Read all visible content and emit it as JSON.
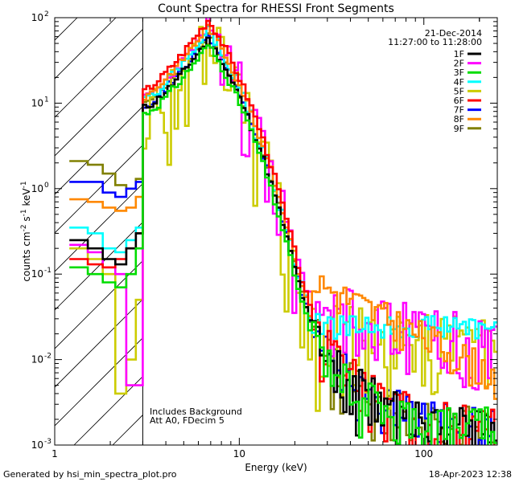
{
  "chart_data": {
    "type": "line",
    "title": "Count Spectra for RHESSI Front Segments",
    "xlabel": "Energy (keV)",
    "ylabel_main": "counts cm",
    "ylabel_sup1": "-2",
    "ylabel_mid": " s",
    "ylabel_sup2": "-1",
    "ylabel_end": " keV",
    "ylabel_sup3": "-1",
    "x_scale": "log",
    "y_scale": "log",
    "xlim": [
      1,
      250
    ],
    "ylim": [
      0.001,
      100
    ],
    "x_tick_labels": [
      {
        "v": 1,
        "t": "1"
      },
      {
        "v": 10,
        "t": "10"
      },
      {
        "v": 100,
        "t": "100"
      }
    ],
    "y_tick_labels": [
      {
        "v": 0.001,
        "b": "10",
        "e": "-3"
      },
      {
        "v": 0.01,
        "b": "10",
        "e": "-2"
      },
      {
        "v": 0.1,
        "b": "10",
        "e": "-1"
      },
      {
        "v": 1,
        "b": "10",
        "e": "0"
      },
      {
        "v": 10,
        "b": "10",
        "e": "1"
      },
      {
        "v": 100,
        "b": "10",
        "e": "2"
      }
    ],
    "date": "21-Dec-2014",
    "time_range": "11:27:00 to 11:28:00",
    "annotations": [
      "Includes Background",
      "Att A0, FDecim 5"
    ],
    "hatched_region_upper_keV": 3,
    "series": [
      {
        "name": "1F",
        "color": "#000000",
        "low_values": [
          0.25,
          0.2,
          0.15,
          0.13,
          0.2,
          0.3
        ],
        "peak": 55,
        "scale": 1.0,
        "seed": 11,
        "noise": "thermal"
      },
      {
        "name": "2F",
        "color": "#ff00ff",
        "low_values": [
          0.22,
          0.18,
          0.12,
          0.1,
          0.005,
          0.005
        ],
        "peak": 75,
        "scale": 1.2,
        "seed": 23,
        "noise": "high"
      },
      {
        "name": "3F",
        "color": "#00dd00",
        "low_values": [
          0.12,
          0.1,
          0.08,
          0.07,
          0.1,
          0.2
        ],
        "peak": 48,
        "scale": 0.8,
        "seed": 31,
        "noise": "thermal"
      },
      {
        "name": "4F",
        "color": "#00ffff",
        "low_values": [
          0.35,
          0.3,
          0.2,
          0.18,
          0.25,
          0.35
        ],
        "peak": 70,
        "scale": 1.1,
        "seed": 47,
        "noise": "mid"
      },
      {
        "name": "5F",
        "color": "#cccc00",
        "low_values": [
          0.2,
          0.15,
          0.1,
          0.004,
          0.01,
          0.05
        ],
        "peak": 60,
        "scale": 1.0,
        "seed": 53,
        "noise": "yellow"
      },
      {
        "name": "6F",
        "color": "#ff0000",
        "low_values": [
          0.15,
          0.13,
          0.12,
          0.15,
          0.2,
          0.3
        ],
        "peak": 95,
        "scale": 1.3,
        "seed": 67,
        "noise": "thermal"
      },
      {
        "name": "7F",
        "color": "#0000ff",
        "low_values": [
          1.2,
          1.2,
          0.9,
          0.8,
          1.0,
          1.2
        ],
        "peak": 60,
        "scale": 1.1,
        "seed": 71,
        "noise": "thermal"
      },
      {
        "name": "8F",
        "color": "#ff8800",
        "low_values": [
          0.75,
          0.7,
          0.6,
          0.55,
          0.6,
          0.8
        ],
        "peak": 80,
        "scale": 1.15,
        "seed": 83,
        "noise": "orange"
      },
      {
        "name": "9F",
        "color": "#808000",
        "low_values": [
          2.1,
          1.9,
          1.5,
          1.1,
          1.0,
          1.3
        ],
        "peak": 62,
        "scale": 1.05,
        "seed": 97,
        "noise": "thermal"
      }
    ]
  },
  "footer": {
    "generated_by": "Generated by hsi_min_spectra_plot.pro",
    "timestamp": "18-Apr-2023 12:38"
  }
}
